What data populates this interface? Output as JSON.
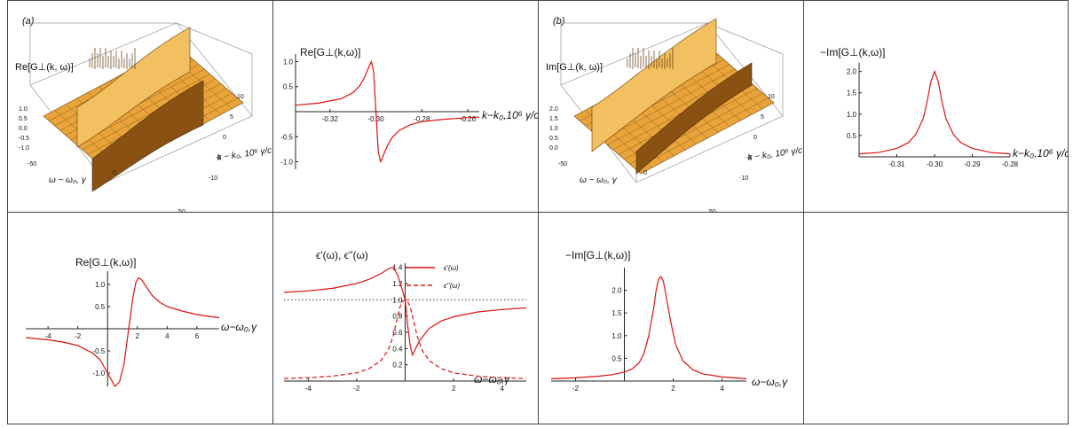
{
  "panel_tags": {
    "a": "(a)",
    "b": "(b)"
  },
  "surface_a": {
    "zlabel": "Re[G⊥(k, ω)]",
    "z_ticks": [
      "1.0",
      "0.5",
      "0.0",
      "-0.5",
      "-1.0"
    ],
    "omega_ticks": [
      "-50",
      "0",
      "50"
    ],
    "k_ticks": [
      "10",
      "5",
      "0",
      "-5",
      "-10"
    ],
    "omega_label": "ω − ω₀, γ",
    "k_label": "k − k₀, 10⁶ γ/c"
  },
  "surface_b": {
    "zlabel": "Im[G⊥(k, ω)]",
    "z_ticks": [
      "2.0",
      "1.5",
      "1.0",
      "0.5",
      "0.0"
    ],
    "omega_ticks": [
      "-50",
      "0",
      "50"
    ],
    "k_ticks": [
      "10",
      "5",
      "0",
      "-5",
      "-10"
    ],
    "omega_label": "ω − ω₀, γ",
    "k_label": "k − k₀, 10⁶ γ/c"
  },
  "colors": {
    "curve": "#e01010",
    "axis": "#222222",
    "dotted": "#333333",
    "surface": "#e8a43a",
    "surface_dark": "#8a5212"
  },
  "chart_data": [
    {
      "id": "re_vs_k",
      "type": "line",
      "title": "Re[G⊥(k,ω)]",
      "xlabel": "k−k₀,10⁶ γ/c",
      "xlim": [
        -0.335,
        -0.255
      ],
      "ylim": [
        -1.15,
        1.15
      ],
      "x_ticks": [
        "-0.32",
        "-0.30",
        "-0.28",
        "-0.26"
      ],
      "x_tick_values": [
        -0.32,
        -0.3,
        -0.28,
        -0.26
      ],
      "y_ticks": [
        "1.0",
        "0.5",
        "-0.5",
        "-1.0"
      ],
      "y_tick_values": [
        1.0,
        0.5,
        -0.5,
        -1.0
      ],
      "series": [
        {
          "x": [
            -0.335,
            -0.325,
            -0.315,
            -0.31,
            -0.307,
            -0.305,
            -0.303,
            -0.302,
            -0.301,
            -0.3,
            -0.299,
            -0.298,
            -0.297,
            -0.295,
            -0.293,
            -0.29,
            -0.285,
            -0.28,
            -0.27,
            -0.26,
            -0.255
          ],
          "y": [
            0.13,
            0.17,
            0.26,
            0.38,
            0.52,
            0.68,
            0.9,
            1.0,
            0.8,
            0.0,
            -0.8,
            -1.0,
            -0.9,
            -0.68,
            -0.52,
            -0.38,
            -0.26,
            -0.2,
            -0.15,
            -0.12,
            -0.11
          ]
        }
      ]
    },
    {
      "id": "imneg_vs_k",
      "type": "line",
      "title": "−Im[G⊥(k,ω)]",
      "xlabel": "k−k₀,10⁶ γ/c",
      "xlim": [
        -0.32,
        -0.28
      ],
      "ylim": [
        0,
        2.2
      ],
      "x_ticks": [
        "-0.31",
        "-0.30",
        "-0.29",
        "-0.28"
      ],
      "x_tick_values": [
        -0.31,
        -0.3,
        -0.29,
        -0.28
      ],
      "y_ticks": [
        "2.0",
        "1.5",
        "1.0",
        "0.5"
      ],
      "y_tick_values": [
        2.0,
        1.5,
        1.0,
        0.5
      ],
      "series": [
        {
          "x": [
            -0.32,
            -0.315,
            -0.31,
            -0.307,
            -0.305,
            -0.303,
            -0.302,
            -0.301,
            -0.3,
            -0.299,
            -0.298,
            -0.297,
            -0.295,
            -0.293,
            -0.29,
            -0.285,
            -0.28
          ],
          "y": [
            0.07,
            0.1,
            0.2,
            0.33,
            0.52,
            0.9,
            1.28,
            1.75,
            2.0,
            1.75,
            1.28,
            0.9,
            0.52,
            0.33,
            0.2,
            0.1,
            0.07
          ]
        }
      ]
    },
    {
      "id": "re_vs_omega",
      "type": "line",
      "title": "Re[G⊥(k,ω)]",
      "xlabel": "ω−ω₀,γ",
      "xlim": [
        -5.5,
        7.5
      ],
      "ylim": [
        -1.3,
        1.3
      ],
      "x_ticks": [
        "-4",
        "-2",
        "2",
        "4",
        "6"
      ],
      "x_tick_values": [
        -4,
        -2,
        2,
        4,
        6
      ],
      "y_ticks": [
        "1.0",
        "0.5",
        "-0.5",
        "-1.0"
      ],
      "y_tick_values": [
        1.0,
        0.5,
        -0.5,
        -1.0
      ],
      "series": [
        {
          "x": [
            -5.5,
            -4,
            -3,
            -2,
            -1,
            -0.5,
            0,
            0.5,
            0.8,
            1.1,
            1.3,
            1.5,
            1.7,
            1.9,
            2.1,
            2.3,
            2.6,
            3,
            3.5,
            4,
            5,
            6,
            7,
            7.5
          ],
          "y": [
            -0.2,
            -0.25,
            -0.3,
            -0.38,
            -0.55,
            -0.7,
            -1.0,
            -1.3,
            -1.2,
            -0.8,
            -0.3,
            0.2,
            0.7,
            1.05,
            1.15,
            1.1,
            0.95,
            0.75,
            0.6,
            0.5,
            0.4,
            0.32,
            0.27,
            0.25
          ]
        }
      ]
    },
    {
      "id": "epsilon",
      "type": "line",
      "title": "ϵ'(ω), ϵ''(ω)",
      "xlabel": "ω−ω₀,γ",
      "xlim": [
        -5,
        5
      ],
      "ylim": [
        0,
        1.45
      ],
      "x_ticks": [
        "-4",
        "-2",
        "2",
        "4"
      ],
      "x_tick_values": [
        -4,
        -2,
        2,
        4
      ],
      "y_ticks": [
        "1.4",
        "1.2",
        "1.0",
        "0.8",
        "0.6",
        "0.4",
        "0.2"
      ],
      "y_tick_values": [
        1.4,
        1.2,
        1.0,
        0.8,
        0.6,
        0.4,
        0.2
      ],
      "reference_line": 1.0,
      "legend": [
        "ϵ'(ω)",
        "ϵ''(ω)"
      ],
      "series": [
        {
          "name": "ϵ'(ω)",
          "style": "solid",
          "x": [
            -5,
            -4,
            -3,
            -2,
            -1.5,
            -1,
            -0.7,
            -0.5,
            -0.3,
            -0.1,
            0,
            0.1,
            0.2,
            0.3,
            0.4,
            0.6,
            1,
            1.5,
            2,
            3,
            4,
            5
          ],
          "y": [
            1.09,
            1.11,
            1.14,
            1.2,
            1.25,
            1.32,
            1.38,
            1.4,
            1.3,
            1.1,
            1.0,
            0.7,
            0.45,
            0.32,
            0.38,
            0.5,
            0.65,
            0.74,
            0.79,
            0.85,
            0.88,
            0.9
          ]
        },
        {
          "name": "ϵ''(ω)",
          "style": "dashed",
          "x": [
            -5,
            -4,
            -3,
            -2,
            -1.5,
            -1,
            -0.7,
            -0.5,
            -0.3,
            -0.2,
            -0.1,
            0,
            0.1,
            0.2,
            0.3,
            0.5,
            0.7,
            1,
            1.5,
            2,
            3,
            4,
            5
          ],
          "y": [
            0.03,
            0.04,
            0.06,
            0.1,
            0.15,
            0.25,
            0.38,
            0.55,
            0.8,
            0.92,
            0.98,
            1.0,
            0.98,
            0.92,
            0.8,
            0.55,
            0.38,
            0.25,
            0.15,
            0.1,
            0.06,
            0.04,
            0.03
          ]
        }
      ]
    },
    {
      "id": "imneg_vs_omega",
      "type": "line",
      "title": "−Im[G⊥(k,ω)]",
      "xlabel": "ω−ω₀,γ",
      "xlim": [
        -3,
        5
      ],
      "ylim": [
        0,
        2.5
      ],
      "x_ticks": [
        "-2",
        "2",
        "4"
      ],
      "x_tick_values": [
        -2,
        2,
        4
      ],
      "y_ticks": [
        "2.0",
        "1.5",
        "1.0",
        "0.5"
      ],
      "y_tick_values": [
        2.0,
        1.5,
        1.0,
        0.5
      ],
      "series": [
        {
          "x": [
            -3,
            -2,
            -1,
            -0.5,
            0,
            0.3,
            0.6,
            0.8,
            1,
            1.2,
            1.3,
            1.4,
            1.5,
            1.6,
            1.7,
            1.9,
            2.1,
            2.4,
            2.8,
            3.2,
            4,
            5
          ],
          "y": [
            0.05,
            0.07,
            0.11,
            0.14,
            0.2,
            0.26,
            0.4,
            0.6,
            1.0,
            1.6,
            2.0,
            2.25,
            2.3,
            2.2,
            1.9,
            1.3,
            0.8,
            0.45,
            0.25,
            0.16,
            0.09,
            0.05
          ]
        }
      ]
    }
  ]
}
